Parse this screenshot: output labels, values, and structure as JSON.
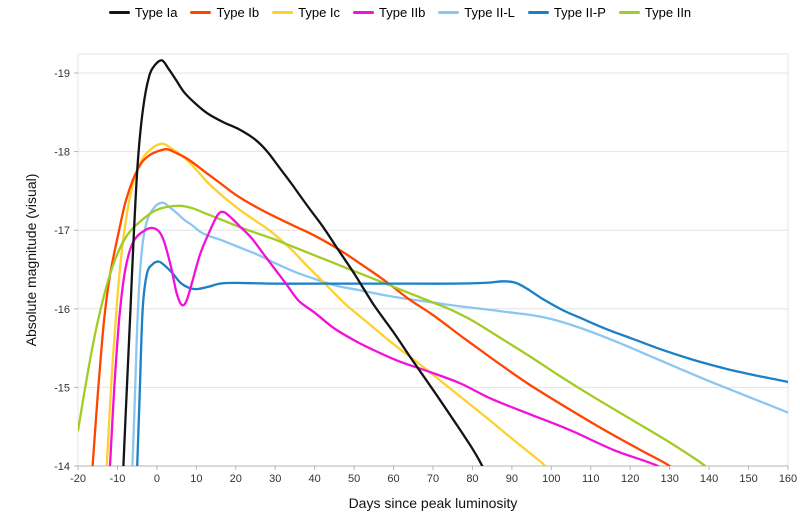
{
  "axes": {
    "x_title": "Days since peak luminosity",
    "y_title": "Absolute magnitude (visual)"
  },
  "colors": {
    "grid": "#e4e4e4",
    "axis": "#b5b5b5",
    "tick_text": "#333333"
  },
  "chart_data": {
    "type": "line",
    "title": "",
    "xlabel": "Days since peak luminosity",
    "ylabel": "Absolute magnitude (visual)",
    "xlim": [
      -20,
      160
    ],
    "ylim": [
      -14,
      -19.25
    ],
    "grid": true,
    "legend_position": "top",
    "x_ticks": [
      -20,
      -10,
      0,
      10,
      20,
      30,
      40,
      50,
      60,
      70,
      80,
      90,
      100,
      110,
      120,
      130,
      140,
      150,
      160
    ],
    "y_ticks": [
      -19,
      -18,
      -17,
      -16,
      -15,
      -14
    ],
    "series": [
      {
        "name": "Type Ia",
        "color": "#141414",
        "points": [
          [
            -8.9,
            -13.5
          ],
          [
            -8.5,
            -14
          ],
          [
            -7.6,
            -15
          ],
          [
            -6.7,
            -16
          ],
          [
            -5.8,
            -17
          ],
          [
            -4.8,
            -17.9
          ],
          [
            -3.5,
            -18.55
          ],
          [
            -2,
            -18.95
          ],
          [
            -0.5,
            -19.1
          ],
          [
            1.3,
            -19.16
          ],
          [
            3,
            -19.05
          ],
          [
            5,
            -18.9
          ],
          [
            7,
            -18.75
          ],
          [
            10,
            -18.6
          ],
          [
            13,
            -18.48
          ],
          [
            17,
            -18.37
          ],
          [
            21,
            -18.28
          ],
          [
            25,
            -18.15
          ],
          [
            28,
            -18.0
          ],
          [
            31,
            -17.8
          ],
          [
            34,
            -17.6
          ],
          [
            38,
            -17.32
          ],
          [
            42,
            -17.05
          ],
          [
            46,
            -16.75
          ],
          [
            50,
            -16.45
          ],
          [
            55,
            -16.05
          ],
          [
            60,
            -15.7
          ],
          [
            65,
            -15.33
          ],
          [
            70,
            -14.97
          ],
          [
            75,
            -14.6
          ],
          [
            80,
            -14.22
          ],
          [
            82.5,
            -14.0
          ],
          [
            84,
            -13.85
          ]
        ]
      },
      {
        "name": "Type Ib",
        "color": "#ff4500",
        "points": [
          [
            -17.2,
            -13.5
          ],
          [
            -16.3,
            -14
          ],
          [
            -15,
            -14.9
          ],
          [
            -13.5,
            -15.8
          ],
          [
            -12,
            -16.4
          ],
          [
            -10,
            -16.9
          ],
          [
            -8,
            -17.35
          ],
          [
            -6,
            -17.65
          ],
          [
            -4,
            -17.85
          ],
          [
            -2,
            -17.95
          ],
          [
            0,
            -18.0
          ],
          [
            2.5,
            -18.03
          ],
          [
            5,
            -17.98
          ],
          [
            8,
            -17.9
          ],
          [
            12,
            -17.75
          ],
          [
            16,
            -17.6
          ],
          [
            20,
            -17.45
          ],
          [
            25,
            -17.3
          ],
          [
            30,
            -17.17
          ],
          [
            35,
            -17.05
          ],
          [
            40,
            -16.93
          ],
          [
            46,
            -16.76
          ],
          [
            52,
            -16.56
          ],
          [
            58,
            -16.35
          ],
          [
            64,
            -16.12
          ],
          [
            70,
            -15.92
          ],
          [
            78,
            -15.62
          ],
          [
            86,
            -15.33
          ],
          [
            94,
            -15.05
          ],
          [
            102,
            -14.8
          ],
          [
            112,
            -14.5
          ],
          [
            122,
            -14.22
          ],
          [
            130,
            -14.0
          ],
          [
            131.5,
            -13.88
          ]
        ]
      },
      {
        "name": "Type Ic",
        "color": "#ffd02e",
        "points": [
          [
            -13.3,
            -13.5
          ],
          [
            -12.7,
            -14
          ],
          [
            -11.5,
            -15.1
          ],
          [
            -10,
            -16.15
          ],
          [
            -8.5,
            -16.9
          ],
          [
            -6.5,
            -17.5
          ],
          [
            -4,
            -17.88
          ],
          [
            -1,
            -18.05
          ],
          [
            1.5,
            -18.1
          ],
          [
            4,
            -18.03
          ],
          [
            7,
            -17.92
          ],
          [
            10,
            -17.77
          ],
          [
            13,
            -17.6
          ],
          [
            17,
            -17.42
          ],
          [
            21,
            -17.26
          ],
          [
            25,
            -17.12
          ],
          [
            29,
            -16.98
          ],
          [
            34,
            -16.76
          ],
          [
            38,
            -16.55
          ],
          [
            43,
            -16.3
          ],
          [
            48,
            -16.05
          ],
          [
            54,
            -15.8
          ],
          [
            60,
            -15.55
          ],
          [
            67,
            -15.28
          ],
          [
            74,
            -15.0
          ],
          [
            82,
            -14.68
          ],
          [
            90,
            -14.35
          ],
          [
            98.5,
            -14.0
          ],
          [
            100,
            -13.88
          ]
        ]
      },
      {
        "name": "Type IIb",
        "color": "#f211d8",
        "points": [
          [
            -12.5,
            -13.5
          ],
          [
            -11.9,
            -14
          ],
          [
            -10.8,
            -15
          ],
          [
            -9.5,
            -15.9
          ],
          [
            -8,
            -16.5
          ],
          [
            -6,
            -16.85
          ],
          [
            -3,
            -17.0
          ],
          [
            -0.5,
            -17.02
          ],
          [
            1.5,
            -16.9
          ],
          [
            3.5,
            -16.55
          ],
          [
            5,
            -16.2
          ],
          [
            6.3,
            -16.05
          ],
          [
            7.5,
            -16.1
          ],
          [
            9,
            -16.35
          ],
          [
            11,
            -16.7
          ],
          [
            13.5,
            -17.0
          ],
          [
            15.5,
            -17.2
          ],
          [
            17,
            -17.23
          ],
          [
            19,
            -17.15
          ],
          [
            21,
            -17.05
          ],
          [
            24,
            -16.9
          ],
          [
            27,
            -16.7
          ],
          [
            30,
            -16.5
          ],
          [
            33,
            -16.3
          ],
          [
            36,
            -16.1
          ],
          [
            40,
            -15.95
          ],
          [
            45,
            -15.75
          ],
          [
            50,
            -15.6
          ],
          [
            56,
            -15.45
          ],
          [
            62,
            -15.32
          ],
          [
            69,
            -15.2
          ],
          [
            77,
            -15.05
          ],
          [
            85,
            -14.85
          ],
          [
            95,
            -14.65
          ],
          [
            105,
            -14.45
          ],
          [
            116,
            -14.2
          ],
          [
            127,
            -14.0
          ],
          [
            128.5,
            -13.88
          ]
        ]
      },
      {
        "name": "Type II-L",
        "color": "#8bc7f0",
        "points": [
          [
            -6.8,
            -13.5
          ],
          [
            -6.2,
            -14
          ],
          [
            -5.5,
            -15
          ],
          [
            -4.8,
            -16
          ],
          [
            -3.8,
            -16.75
          ],
          [
            -2.5,
            -17.12
          ],
          [
            -0.5,
            -17.3
          ],
          [
            1.5,
            -17.35
          ],
          [
            3,
            -17.3
          ],
          [
            5,
            -17.22
          ],
          [
            7,
            -17.13
          ],
          [
            9,
            -17.06
          ],
          [
            11,
            -16.98
          ],
          [
            13,
            -16.93
          ],
          [
            16,
            -16.88
          ],
          [
            19,
            -16.82
          ],
          [
            22,
            -16.76
          ],
          [
            26,
            -16.68
          ],
          [
            30,
            -16.58
          ],
          [
            35,
            -16.47
          ],
          [
            40,
            -16.38
          ],
          [
            45,
            -16.3
          ],
          [
            51,
            -16.24
          ],
          [
            57,
            -16.18
          ],
          [
            63,
            -16.13
          ],
          [
            70,
            -16.08
          ],
          [
            77,
            -16.03
          ],
          [
            84,
            -15.99
          ],
          [
            90,
            -15.95
          ],
          [
            95,
            -15.92
          ],
          [
            100,
            -15.87
          ],
          [
            106,
            -15.78
          ],
          [
            112,
            -15.67
          ],
          [
            118,
            -15.55
          ],
          [
            125,
            -15.4
          ],
          [
            132,
            -15.25
          ],
          [
            140,
            -15.08
          ],
          [
            148,
            -14.92
          ],
          [
            154,
            -14.8
          ],
          [
            160,
            -14.68
          ]
        ]
      },
      {
        "name": "Type II-P",
        "color": "#1a80c8",
        "points": [
          [
            -5.6,
            -13.5
          ],
          [
            -5,
            -14
          ],
          [
            -4.3,
            -15
          ],
          [
            -3.6,
            -16
          ],
          [
            -2.5,
            -16.45
          ],
          [
            -1,
            -16.57
          ],
          [
            0.5,
            -16.6
          ],
          [
            2,
            -16.55
          ],
          [
            4,
            -16.45
          ],
          [
            6,
            -16.33
          ],
          [
            8,
            -16.27
          ],
          [
            10,
            -16.25
          ],
          [
            13,
            -16.28
          ],
          [
            16,
            -16.32
          ],
          [
            20,
            -16.33
          ],
          [
            30,
            -16.32
          ],
          [
            45,
            -16.32
          ],
          [
            60,
            -16.32
          ],
          [
            75,
            -16.32
          ],
          [
            83,
            -16.33
          ],
          [
            88,
            -16.35
          ],
          [
            91,
            -16.33
          ],
          [
            94,
            -16.25
          ],
          [
            98,
            -16.12
          ],
          [
            103,
            -15.98
          ],
          [
            108,
            -15.87
          ],
          [
            114,
            -15.74
          ],
          [
            120,
            -15.63
          ],
          [
            128,
            -15.48
          ],
          [
            136,
            -15.35
          ],
          [
            144,
            -15.24
          ],
          [
            152,
            -15.15
          ],
          [
            160,
            -15.07
          ]
        ]
      },
      {
        "name": "Type IIn",
        "color": "#a2cc23",
        "points": [
          [
            -20,
            -14.45
          ],
          [
            -18,
            -15.05
          ],
          [
            -16,
            -15.6
          ],
          [
            -14,
            -16.05
          ],
          [
            -12,
            -16.42
          ],
          [
            -10,
            -16.7
          ],
          [
            -8,
            -16.9
          ],
          [
            -6,
            -17.03
          ],
          [
            -4,
            -17.12
          ],
          [
            -2,
            -17.2
          ],
          [
            0,
            -17.26
          ],
          [
            3,
            -17.3
          ],
          [
            6,
            -17.31
          ],
          [
            9,
            -17.28
          ],
          [
            12,
            -17.22
          ],
          [
            15,
            -17.16
          ],
          [
            18,
            -17.1
          ],
          [
            22,
            -17.02
          ],
          [
            26,
            -16.95
          ],
          [
            30,
            -16.88
          ],
          [
            35,
            -16.78
          ],
          [
            40,
            -16.68
          ],
          [
            45,
            -16.58
          ],
          [
            50,
            -16.48
          ],
          [
            55,
            -16.38
          ],
          [
            60,
            -16.28
          ],
          [
            65,
            -16.18
          ],
          [
            70,
            -16.08
          ],
          [
            74,
            -16.0
          ],
          [
            80,
            -15.85
          ],
          [
            88,
            -15.6
          ],
          [
            95,
            -15.38
          ],
          [
            102,
            -15.15
          ],
          [
            110,
            -14.9
          ],
          [
            120,
            -14.6
          ],
          [
            130,
            -14.3
          ],
          [
            139,
            -14.0
          ],
          [
            140.5,
            -13.88
          ]
        ]
      }
    ]
  }
}
